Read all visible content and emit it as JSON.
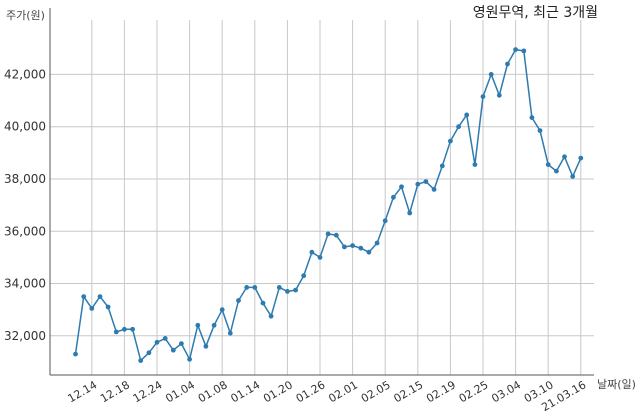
{
  "chart_data": {
    "type": "line",
    "title": "영원무역, 최근 3개월",
    "ylabel": "주가(원)",
    "xlabel": "날짜(일)",
    "ylim": [
      30500,
      43700
    ],
    "yticks": [
      32000,
      34000,
      36000,
      38000,
      40000,
      42000
    ],
    "ytick_labels": [
      "32,000",
      "34,000",
      "36,000",
      "38,000",
      "40,000",
      "42,000"
    ],
    "xtick_labels": [
      "12.14",
      "12.18",
      "12.24",
      "01.04",
      "01.08",
      "01.14",
      "01.20",
      "01.26",
      "02.01",
      "02.05",
      "02.15",
      "02.19",
      "02.25",
      "03.04",
      "03.10",
      "21.03.16"
    ],
    "xtick_index": [
      2,
      6,
      10,
      14,
      18,
      22,
      26,
      30,
      34,
      38,
      42,
      46,
      50,
      54,
      58,
      62
    ],
    "grid": true,
    "color": "#2e7bb0",
    "series": [
      {
        "values": [
          31300,
          33500,
          33050,
          33500,
          33100,
          32150,
          32250,
          32250,
          31050,
          31350,
          31750,
          31900,
          31450,
          31700,
          31100,
          32400,
          31600,
          32400,
          33000,
          32100,
          33350,
          33850,
          33850,
          33250,
          32750,
          33850,
          33700,
          33750,
          34300,
          35200,
          35000,
          35900,
          35850,
          35400,
          35450,
          35350,
          35200,
          35550,
          36400,
          37300,
          37700,
          36700,
          37800,
          37900,
          37600,
          38500,
          39450,
          40000,
          40450,
          38550,
          41150,
          42000,
          41200,
          42400,
          42950,
          42900,
          40350,
          39850,
          38550,
          38300,
          38850,
          38100,
          38800
        ]
      }
    ]
  }
}
